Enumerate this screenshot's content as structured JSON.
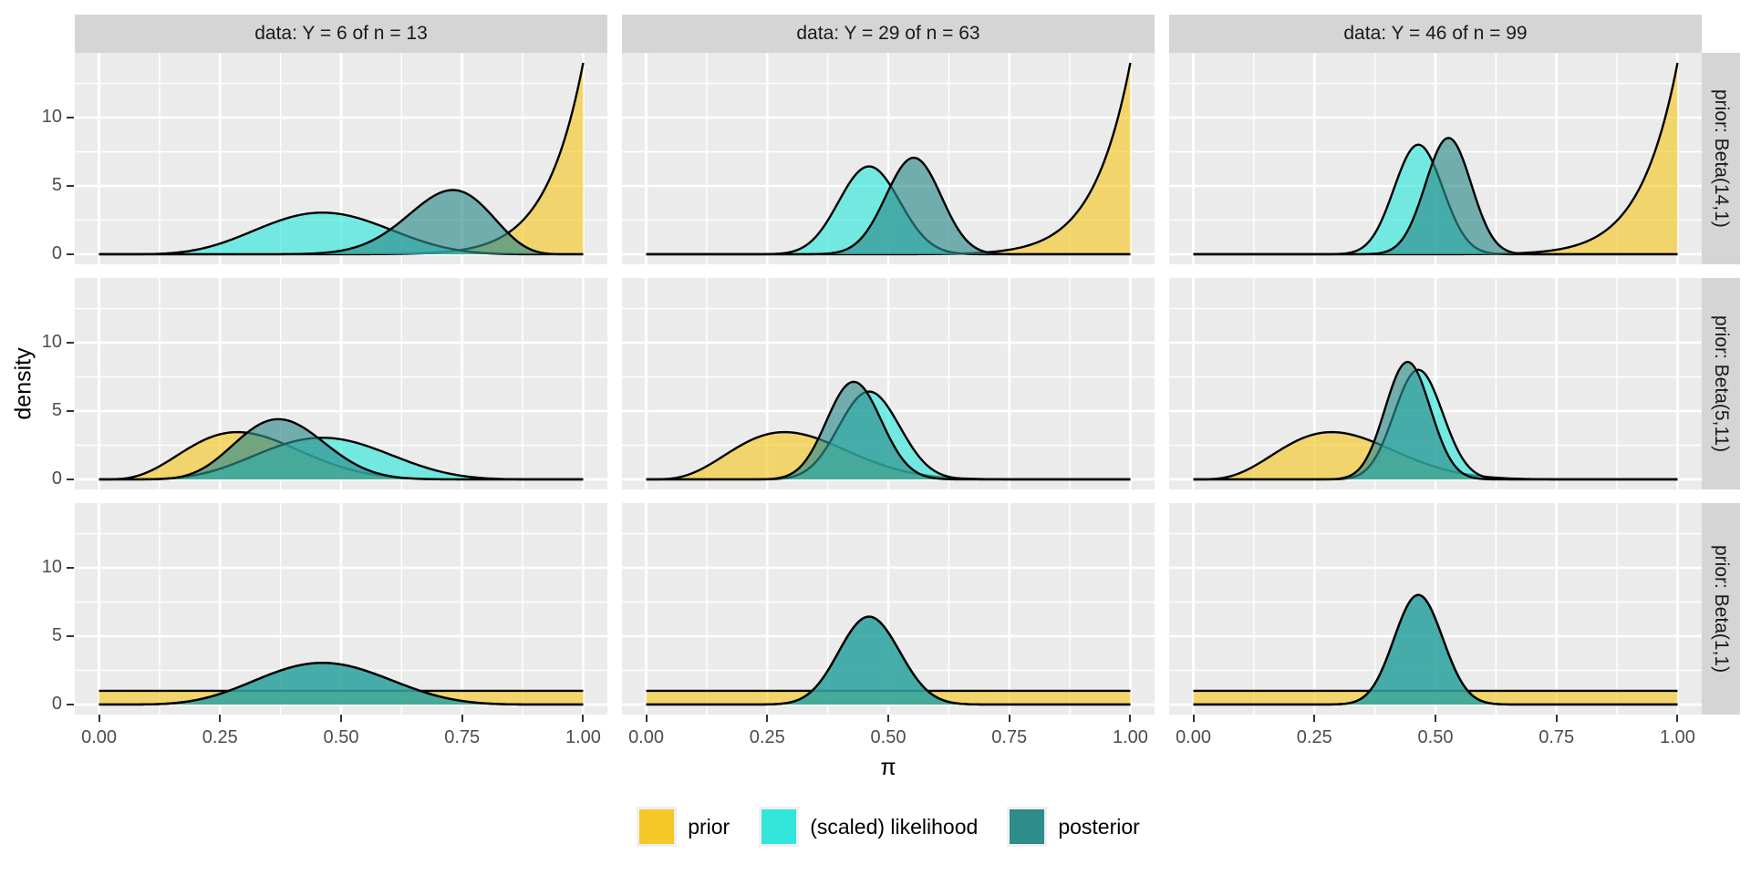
{
  "figure": {
    "background": "#FFFFFF",
    "panel_bg": "#EBEBEB",
    "strip_bg": "#D5D5D5",
    "grid_color": "#FFFFFF",
    "tick_color": "#333333",
    "tick_label_color": "#4D4D4D",
    "curve_outline_color": "#000000",
    "fill_opacity": 0.65
  },
  "axes": {
    "x_title": "π",
    "y_title": "density",
    "x_tick_values": [
      0,
      0.25,
      0.5,
      0.75,
      1
    ],
    "x_tick_labels": [
      "0.00",
      "0.25",
      "0.50",
      "0.75",
      "1.00"
    ],
    "y_tick_values": [
      0,
      5,
      10
    ],
    "y_tick_labels": [
      "0",
      "5",
      "10"
    ],
    "x_data_range": [
      0,
      1
    ],
    "y_data_range": [
      0,
      14
    ],
    "x_expanded_range": [
      -0.05,
      1.05
    ],
    "y_expanded_range": [
      -0.735,
      14.735
    ],
    "grid": "major and minor white gridlines on grey panel"
  },
  "legend": {
    "position": "bottom",
    "items": [
      {
        "label": "prior",
        "color": "#F5C828"
      },
      {
        "label": "(scaled) likelihood",
        "color": "#33E6DC"
      },
      {
        "label": "posterior",
        "color": "#2E8C8A"
      }
    ]
  },
  "chart_data": {
    "type": "area",
    "description": "Faceted grid of Beta density curves: prior, scaled likelihood and posterior for a beta-binomial model. Curves are Beta(a,b) probability density functions over pi in [0,1].",
    "col_facets": [
      "data: Y = 6 of n = 13",
      "data: Y = 29 of n = 63",
      "data: Y = 46 of n = 99"
    ],
    "row_facets": [
      "prior: Beta(14,1)",
      "prior: Beta(5,11)",
      "prior: Beta(1,1)"
    ],
    "draw_order": [
      "prior",
      "likelihood",
      "posterior"
    ],
    "panels": [
      {
        "row": 0,
        "col": 0,
        "curves": {
          "prior": {
            "a": 14,
            "b": 1
          },
          "likelihood": {
            "a": 7,
            "b": 8
          },
          "posterior": {
            "a": 20,
            "b": 8
          }
        }
      },
      {
        "row": 0,
        "col": 1,
        "curves": {
          "prior": {
            "a": 14,
            "b": 1
          },
          "likelihood": {
            "a": 30,
            "b": 35
          },
          "posterior": {
            "a": 43,
            "b": 35
          }
        }
      },
      {
        "row": 0,
        "col": 2,
        "curves": {
          "prior": {
            "a": 14,
            "b": 1
          },
          "likelihood": {
            "a": 47,
            "b": 54
          },
          "posterior": {
            "a": 60,
            "b": 54
          }
        }
      },
      {
        "row": 1,
        "col": 0,
        "curves": {
          "prior": {
            "a": 5,
            "b": 11
          },
          "likelihood": {
            "a": 7,
            "b": 8
          },
          "posterior": {
            "a": 11,
            "b": 18
          }
        }
      },
      {
        "row": 1,
        "col": 1,
        "curves": {
          "prior": {
            "a": 5,
            "b": 11
          },
          "likelihood": {
            "a": 30,
            "b": 35
          },
          "posterior": {
            "a": 34,
            "b": 45
          }
        }
      },
      {
        "row": 1,
        "col": 2,
        "curves": {
          "prior": {
            "a": 5,
            "b": 11
          },
          "likelihood": {
            "a": 47,
            "b": 54
          },
          "posterior": {
            "a": 51,
            "b": 64
          }
        }
      },
      {
        "row": 2,
        "col": 0,
        "curves": {
          "prior": {
            "a": 1,
            "b": 1
          },
          "likelihood": {
            "a": 7,
            "b": 8
          },
          "posterior": {
            "a": 7,
            "b": 8
          }
        }
      },
      {
        "row": 2,
        "col": 1,
        "curves": {
          "prior": {
            "a": 1,
            "b": 1
          },
          "likelihood": {
            "a": 30,
            "b": 35
          },
          "posterior": {
            "a": 30,
            "b": 35
          }
        }
      },
      {
        "row": 2,
        "col": 2,
        "curves": {
          "prior": {
            "a": 1,
            "b": 1
          },
          "likelihood": {
            "a": 47,
            "b": 54
          },
          "posterior": {
            "a": 47,
            "b": 54
          }
        }
      }
    ]
  }
}
